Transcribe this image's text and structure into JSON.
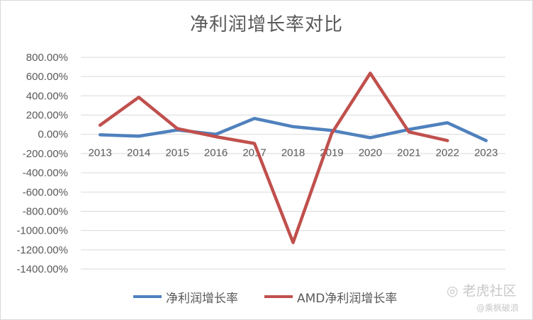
{
  "chart_data": {
    "type": "line",
    "title": "净利润增长率对比",
    "xlabel": "",
    "ylabel": "",
    "categories": [
      "2013",
      "2014",
      "2015",
      "2016",
      "2017",
      "2018",
      "2019",
      "2020",
      "2021",
      "2022",
      "2023"
    ],
    "ylim": [
      -1400,
      800
    ],
    "yticks": [
      800,
      600,
      400,
      200,
      0,
      -200,
      -400,
      -600,
      -800,
      -1000,
      -1200,
      -1400
    ],
    "ytick_labels": [
      "800.00%",
      "600.00%",
      "400.00%",
      "200.00%",
      "0.00%",
      "-200.00%",
      "-400.00%",
      "-600.00%",
      "-800.00%",
      "-1000.00%",
      "-1200.00%",
      "-1400.00%"
    ],
    "grid": true,
    "legend_position": "bottom",
    "series": [
      {
        "name": "净利润增长率",
        "color": "#4f81bd",
        "values": [
          -5,
          -20,
          45,
          0,
          165,
          80,
          40,
          -35,
          50,
          120,
          -65
        ]
      },
      {
        "name": "AMD净利润增长率",
        "color": "#c0504d",
        "values": [
          95,
          385,
          60,
          -25,
          -95,
          -1125,
          10,
          635,
          25,
          -65,
          null
        ]
      }
    ]
  },
  "watermark": {
    "brand": "老虎社区",
    "user": "@乘枫破浪"
  }
}
